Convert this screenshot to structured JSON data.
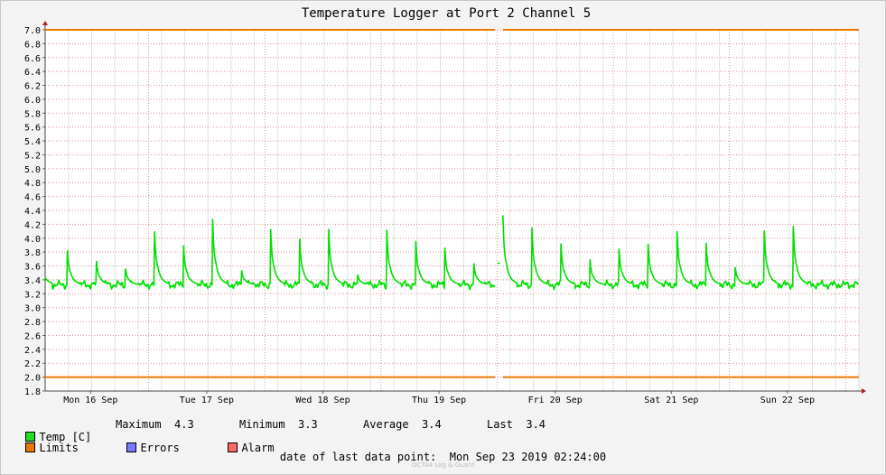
{
  "chart_data": {
    "type": "line",
    "title": "Temperature Logger at Port 2 Channel 5",
    "ylim": [
      1.8,
      7.0
    ],
    "yticks": [
      "1.8",
      "2.0",
      "2.2",
      "2.4",
      "2.6",
      "2.8",
      "3.0",
      "3.2",
      "3.4",
      "3.6",
      "3.8",
      "4.0",
      "4.2",
      "4.4",
      "4.6",
      "4.8",
      "5.0",
      "5.2",
      "5.4",
      "5.6",
      "5.8",
      "6.0",
      "6.2",
      "6.4",
      "6.6",
      "6.8",
      "7.0"
    ],
    "xticks": [
      "Mon 16 Sep",
      "Tue 17 Sep",
      "Wed 18 Sep",
      "Thu 19 Sep",
      "Fri 20 Sep",
      "Sat 21 Sep",
      "Sun 22 Sep"
    ],
    "x_range_days": [
      0,
      7
    ],
    "limits": {
      "upper": 7.0,
      "lower": 2.0
    },
    "series": [
      {
        "name": "Temp [C]",
        "color": "#00e000",
        "baseline": 3.33,
        "spikes": [
          {
            "t": 0.05,
            "v": 4.15
          },
          {
            "t": 0.3,
            "v": 3.87
          },
          {
            "t": 0.55,
            "v": 3.7
          },
          {
            "t": 0.8,
            "v": 3.58
          },
          {
            "t": 1.05,
            "v": 4.15
          },
          {
            "t": 1.3,
            "v": 3.93
          },
          {
            "t": 1.55,
            "v": 4.33
          },
          {
            "t": 1.8,
            "v": 3.55
          },
          {
            "t": 2.05,
            "v": 4.17
          },
          {
            "t": 2.3,
            "v": 4.02
          },
          {
            "t": 2.55,
            "v": 4.16
          },
          {
            "t": 2.8,
            "v": 3.48
          },
          {
            "t": 3.05,
            "v": 4.14
          },
          {
            "t": 3.3,
            "v": 3.97
          },
          {
            "t": 3.55,
            "v": 3.87
          },
          {
            "t": 3.8,
            "v": 3.64
          },
          {
            "t": 4.05,
            "v": 4.33
          },
          {
            "t": 4.3,
            "v": 4.16
          },
          {
            "t": 4.55,
            "v": 3.93
          },
          {
            "t": 4.8,
            "v": 3.7
          },
          {
            "t": 5.05,
            "v": 3.86
          },
          {
            "t": 5.3,
            "v": 3.93
          },
          {
            "t": 5.55,
            "v": 4.12
          },
          {
            "t": 5.8,
            "v": 3.95
          },
          {
            "t": 6.05,
            "v": 3.59
          },
          {
            "t": 6.3,
            "v": 4.14
          },
          {
            "t": 6.55,
            "v": 4.21
          }
        ],
        "gap_days": [
          3.98,
          4.05
        ]
      }
    ]
  },
  "legend": {
    "temp_label": "Temp [C]",
    "max_label": "Maximum",
    "max_value": "4.3",
    "min_label": "Minimum",
    "min_value": "3.3",
    "avg_label": "Average",
    "avg_value": "3.4",
    "last_label": "Last",
    "last_value": "3.4",
    "limits_label": "Limits",
    "errors_label": "Errors",
    "alarm_label": "Alarm"
  },
  "colors": {
    "temp": "#22dd22",
    "limits": "#ee7700",
    "errors": "#7777ff",
    "alarm": "#ff6666"
  },
  "footer": {
    "label": "date of last data point:",
    "value": "Mon Sep 23 2019 02:24:00"
  },
  "watermark": "OCTA4 Log & Guard"
}
